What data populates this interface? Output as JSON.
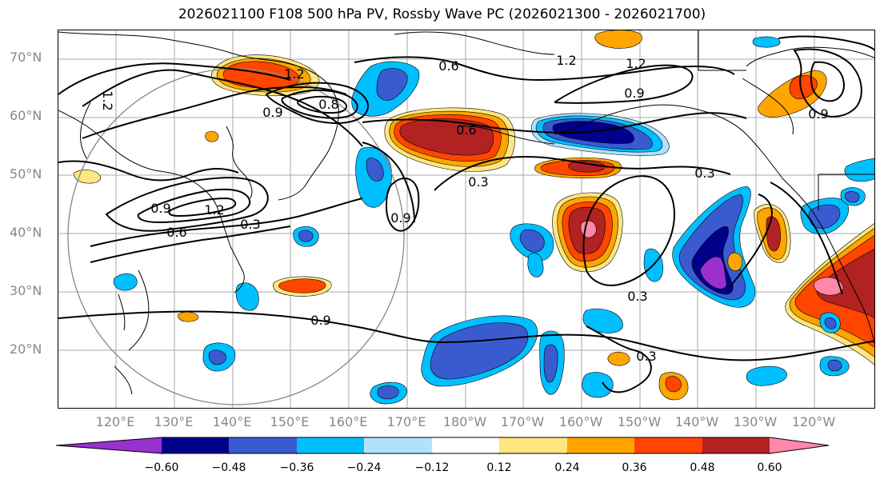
{
  "title": "2026021100 F108 500 hPa PV, Rossby Wave PC (2026021300 - 2026021700)",
  "lat_labels": [
    "70°N",
    "60°N",
    "50°N",
    "40°N",
    "30°N",
    "20°N"
  ],
  "lon_labels": [
    "120°E",
    "130°E",
    "140°E",
    "150°E",
    "160°E",
    "170°E",
    "180°W",
    "170°W",
    "160°W",
    "150°W",
    "140°W",
    "130°W",
    "120°W"
  ],
  "colorbar": {
    "tick_labels": [
      "−0.60",
      "−0.48",
      "−0.36",
      "−0.24",
      "−0.12",
      "0.12",
      "0.24",
      "0.36",
      "0.48",
      "0.60"
    ],
    "colors": [
      "#9b30d0",
      "#00008b",
      "#3a5bd0",
      "#00bfff",
      "#b0e2ff",
      "#ffffff",
      "#ffe680",
      "#ffa500",
      "#ff4500",
      "#b22222",
      "#ff88aa"
    ]
  },
  "contour_labels": [
    "1.2",
    "0.6",
    "1.2",
    "1.2",
    "0.9",
    "0.8",
    "0.9",
    "1.2",
    "0.6",
    "0.9",
    "0.3",
    "0.9",
    "1.2",
    "0.6",
    "0.3",
    "0.9",
    "0.3",
    "0.3",
    "0.3",
    "0.9"
  ],
  "colors": {
    "land_line": "#000000",
    "grid": "#aaaaaa",
    "circle": "#888888",
    "label_gray": "#888888"
  }
}
